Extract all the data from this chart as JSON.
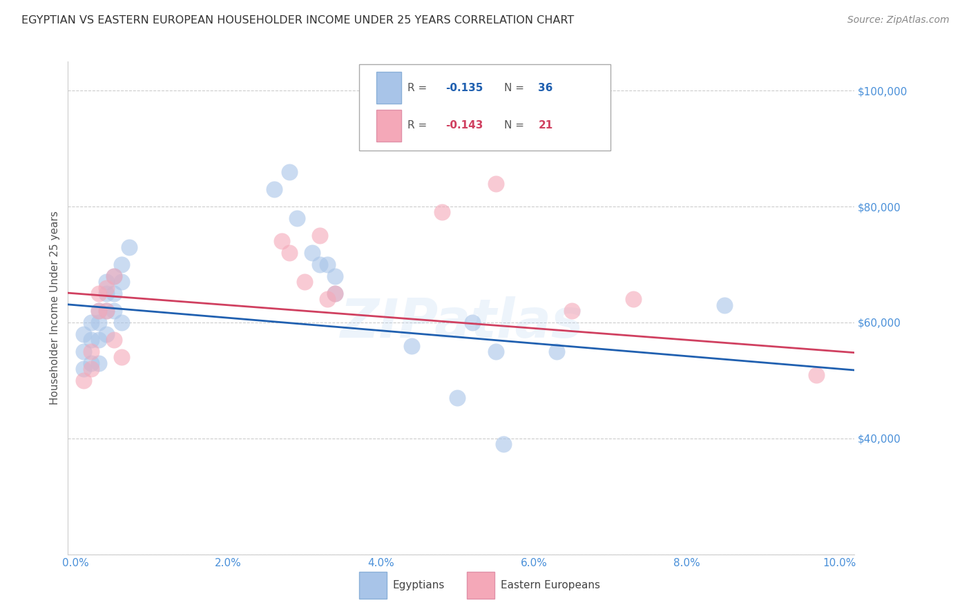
{
  "title": "EGYPTIAN VS EASTERN EUROPEAN HOUSEHOLDER INCOME UNDER 25 YEARS CORRELATION CHART",
  "source": "Source: ZipAtlas.com",
  "ylabel": "Householder Income Under 25 years",
  "watermark": "ZIPatlas",
  "ymin": 20000,
  "ymax": 105000,
  "xmin": -0.001,
  "xmax": 0.102,
  "legend_label1": "Egyptians",
  "legend_label2": "Eastern Europeans",
  "egyptians_x": [
    0.001,
    0.001,
    0.001,
    0.002,
    0.002,
    0.002,
    0.003,
    0.003,
    0.003,
    0.003,
    0.004,
    0.004,
    0.004,
    0.004,
    0.005,
    0.005,
    0.005,
    0.006,
    0.006,
    0.006,
    0.007,
    0.026,
    0.028,
    0.029,
    0.031,
    0.032,
    0.033,
    0.034,
    0.034,
    0.044,
    0.05,
    0.052,
    0.055,
    0.056,
    0.063,
    0.085
  ],
  "egyptians_y": [
    58000,
    55000,
    52000,
    60000,
    57000,
    53000,
    62000,
    60000,
    57000,
    53000,
    67000,
    65000,
    62000,
    58000,
    68000,
    65000,
    62000,
    70000,
    67000,
    60000,
    73000,
    83000,
    86000,
    78000,
    72000,
    70000,
    70000,
    68000,
    65000,
    56000,
    47000,
    60000,
    55000,
    39000,
    55000,
    63000
  ],
  "eastern_x": [
    0.001,
    0.002,
    0.002,
    0.003,
    0.003,
    0.004,
    0.004,
    0.005,
    0.005,
    0.006,
    0.027,
    0.028,
    0.03,
    0.032,
    0.033,
    0.034,
    0.048,
    0.055,
    0.065,
    0.073,
    0.097
  ],
  "eastern_y": [
    50000,
    55000,
    52000,
    65000,
    62000,
    66000,
    62000,
    68000,
    57000,
    54000,
    74000,
    72000,
    67000,
    75000,
    64000,
    65000,
    79000,
    84000,
    62000,
    64000,
    51000
  ],
  "blue_line_color": "#2060b0",
  "pink_line_color": "#d04060",
  "blue_scatter_color": "#a8c4e8",
  "pink_scatter_color": "#f4a8b8",
  "grid_color": "#cccccc",
  "title_color": "#333333",
  "axis_label_color": "#4a90d9",
  "title_fontsize": 11.5,
  "source_fontsize": 10,
  "axis_label_fontsize": 11,
  "tick_fontsize": 11,
  "scatter_alpha": 0.6,
  "scatter_size": 300,
  "line_width": 2.0,
  "background_color": "#ffffff",
  "ytick_positions": [
    20000,
    40000,
    60000,
    80000,
    100000
  ],
  "ytick_labels": [
    "",
    "$40,000",
    "$60,000",
    "$80,000",
    "$100,000"
  ],
  "xtick_positions": [
    0.0,
    0.02,
    0.04,
    0.06,
    0.08,
    0.1
  ],
  "xtick_labels": [
    "0.0%",
    "2.0%",
    "4.0%",
    "6.0%",
    "8.0%",
    "10.0%"
  ]
}
